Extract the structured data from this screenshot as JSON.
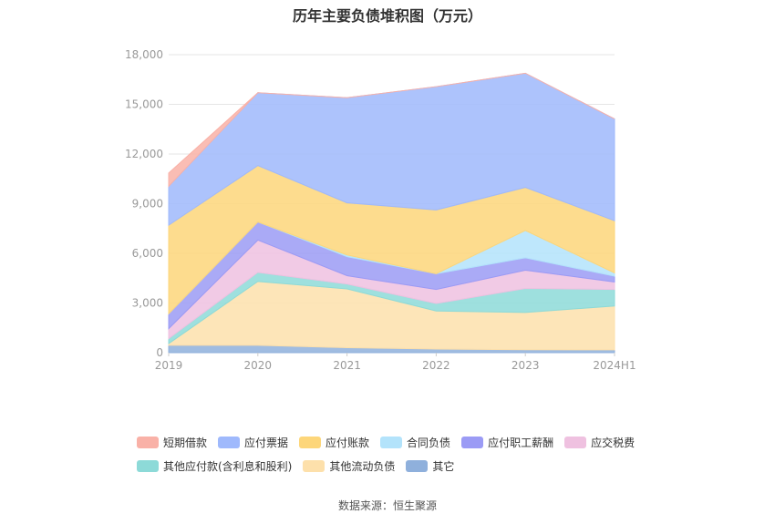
{
  "chart_data": {
    "type": "area",
    "stacked": true,
    "title": "历年主要负债堆积图（万元）",
    "categories": [
      "2019",
      "2020",
      "2021",
      "2022",
      "2023",
      "2024H1"
    ],
    "ylim": [
      0,
      18000
    ],
    "yticks": [
      0,
      3000,
      6000,
      9000,
      12000,
      15000,
      18000
    ],
    "ytick_labels": [
      "0",
      "3,000",
      "6,000",
      "9,000",
      "12,000",
      "15,000",
      "18,000"
    ],
    "grid": true,
    "legend_position": "bottom",
    "series": [
      {
        "name": "其它",
        "color": "#8fb0dc",
        "values": [
          450,
          450,
          300,
          220,
          180,
          170
        ]
      },
      {
        "name": "其他流动负债",
        "color": "#fde0ab",
        "values": [
          100,
          3850,
          3550,
          2300,
          2250,
          2650
        ]
      },
      {
        "name": "其他应付款(含利息和股利)",
        "color": "#8ddad8",
        "values": [
          300,
          550,
          300,
          450,
          1450,
          1000
        ]
      },
      {
        "name": "应交税费",
        "color": "#efc1e0",
        "values": [
          600,
          1950,
          500,
          850,
          1100,
          450
        ]
      },
      {
        "name": "应付职工薪酬",
        "color": "#9b9bf5",
        "values": [
          900,
          1100,
          1150,
          950,
          750,
          350
        ]
      },
      {
        "name": "合同负债",
        "color": "#b3e3fb",
        "values": [
          0,
          0,
          100,
          0,
          1650,
          200
        ]
      },
      {
        "name": "应付账款",
        "color": "#fdd67a",
        "values": [
          5350,
          3400,
          3150,
          3850,
          2600,
          3150
        ]
      },
      {
        "name": "应付票据",
        "color": "#9fb9fc",
        "values": [
          2350,
          4400,
          6350,
          7450,
          6900,
          6150
        ]
      },
      {
        "name": "短期借款",
        "color": "#f9b1a7",
        "values": [
          800,
          0,
          0,
          0,
          0,
          0
        ]
      }
    ],
    "legend_rows": [
      [
        "短期借款",
        "应付票据",
        "应付账款",
        "合同负债",
        "应付职工薪酬",
        "应交税费"
      ],
      [
        "其他应付款(含利息和股利)",
        "其他流动负债",
        "其它"
      ]
    ]
  },
  "source_text": "数据来源：恒生聚源"
}
